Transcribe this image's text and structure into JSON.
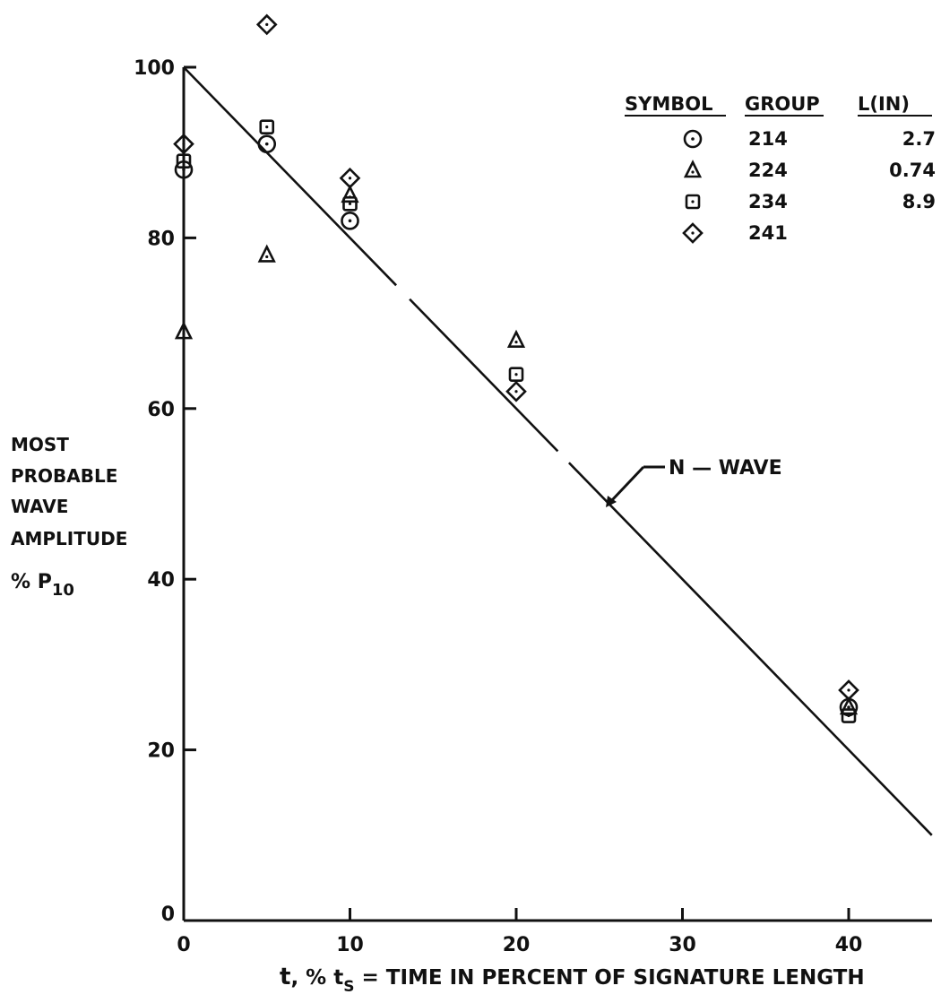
{
  "chart_data": {
    "type": "scatter",
    "title": "",
    "xlabel": "t, % t_S = TIME IN PERCENT OF SIGNATURE LENGTH",
    "xlabel_parts": {
      "var": "t",
      "mid": ", % t",
      "sub": "S",
      "rest": " = TIME IN PERCENT OF SIGNATURE LENGTH"
    },
    "ylabel_lines": [
      "MOST",
      "PROBABLE",
      "WAVE",
      "AMPLITUDE"
    ],
    "ylabel_unit": {
      "prefix": "% P",
      "sub": "10"
    },
    "xlim": [
      0,
      45
    ],
    "ylim": [
      0,
      100
    ],
    "xticks": [
      0,
      10,
      20,
      30,
      40
    ],
    "yticks": [
      0,
      20,
      40,
      60,
      80,
      100
    ],
    "grid": false,
    "legend": {
      "placement": "top-right",
      "headers": [
        "SYMBOL",
        "GROUP",
        "L(IN)"
      ],
      "rows": [
        {
          "marker": "circle",
          "group": "214",
          "length": "2.7"
        },
        {
          "marker": "triangle",
          "group": "224",
          "length": "0.74"
        },
        {
          "marker": "square",
          "group": "234",
          "length": "8.9"
        },
        {
          "marker": "diamond",
          "group": "241",
          "length": ""
        }
      ]
    },
    "reference_line": {
      "label": "N-WAVE",
      "label_text": "N — WAVE",
      "x": [
        0,
        45
      ],
      "y": [
        100,
        10
      ]
    },
    "series": [
      {
        "name": "214",
        "marker": "circle",
        "x": [
          0,
          5,
          10,
          40
        ],
        "y": [
          88,
          91,
          82,
          25
        ]
      },
      {
        "name": "224",
        "marker": "triangle",
        "x": [
          0,
          5,
          10,
          20,
          40
        ],
        "y": [
          69,
          78,
          85,
          68,
          25
        ]
      },
      {
        "name": "234",
        "marker": "square",
        "x": [
          0,
          5,
          10,
          20,
          40
        ],
        "y": [
          89,
          93,
          84,
          64,
          24
        ]
      },
      {
        "name": "241",
        "marker": "diamond",
        "x": [
          0,
          5,
          10,
          20,
          40
        ],
        "y": [
          91,
          105,
          87,
          62,
          27
        ]
      }
    ]
  }
}
